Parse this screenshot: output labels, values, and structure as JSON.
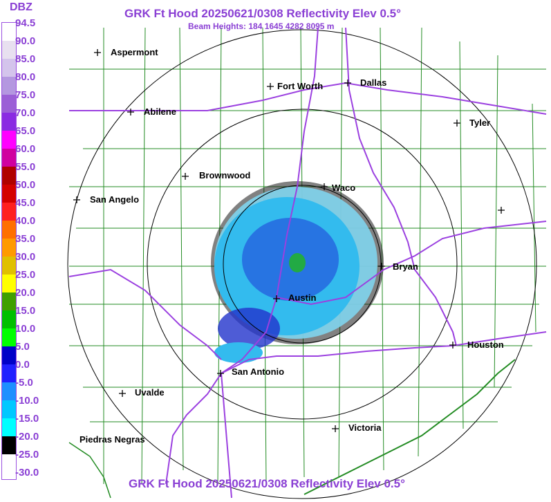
{
  "header": {
    "title": "GRK Ft Hood 20250621/0308 Reflectivity Elev 0.5°",
    "beam_heights": "Beam Heights: 184 1645 4282 8095 m",
    "footer_title": "GRK Ft Hood 20250621/0308 Reflectivity Elev 0.5°"
  },
  "colorbar": {
    "unit": "DBZ",
    "labels": [
      "94.5",
      "90.0",
      "85.0",
      "80.0",
      "75.0",
      "70.0",
      "65.0",
      "60.0",
      "55.0",
      "50.0",
      "45.0",
      "40.0",
      "35.0",
      "30.0",
      "25.0",
      "20.0",
      "15.0",
      "10.0",
      "5.0",
      "0.0",
      "-5.0",
      "-10.0",
      "-15.0",
      "-20.0",
      "-25.0",
      "-30.0"
    ],
    "colors": [
      "#ffffff",
      "#e8e0f0",
      "#d4c4ec",
      "#b497e0",
      "#9b5fd6",
      "#8a2be2",
      "#ff00ff",
      "#d000a0",
      "#b00000",
      "#d40000",
      "#ff2020",
      "#ff7000",
      "#ff9a00",
      "#e0c000",
      "#ffff00",
      "#40a000",
      "#00c000",
      "#00ff00",
      "#0000c8",
      "#2020ff",
      "#1e90ff",
      "#00c8ff",
      "#00ffff",
      "#000000",
      "#ffffff"
    ]
  },
  "cities": [
    {
      "name": "Aspermont"
    },
    {
      "name": "Fort Worth"
    },
    {
      "name": "Dallas"
    },
    {
      "name": "Abilene"
    },
    {
      "name": "Tyler"
    },
    {
      "name": "Brownwood"
    },
    {
      "name": "Waco"
    },
    {
      "name": "San Angelo"
    },
    {
      "name": "Bryan"
    },
    {
      "name": "Austin"
    },
    {
      "name": "Houston"
    },
    {
      "name": "San Antonio"
    },
    {
      "name": "Uvalde"
    },
    {
      "name": "Victoria"
    },
    {
      "name": "Piedras Negras"
    },
    {
      "name": ""
    }
  ],
  "colors": {
    "text": "#8a3fd4",
    "roads": "#9b40e0",
    "counties": "#228b22",
    "range_rings": "#000000"
  }
}
